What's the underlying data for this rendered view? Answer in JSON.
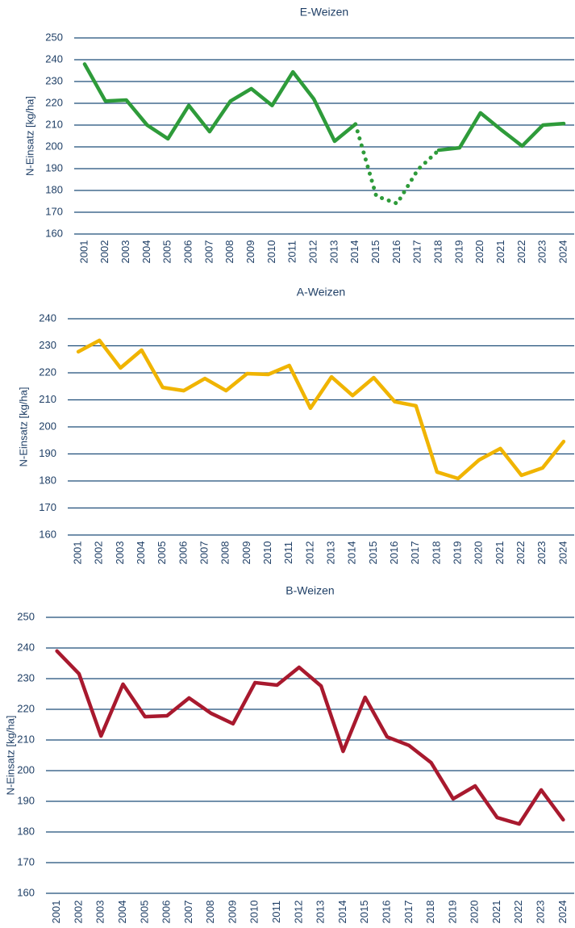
{
  "chart_data": [
    {
      "type": "line",
      "title": "E-Weizen",
      "y_label": "N-Einsatz [kg/ha]",
      "categories": [
        "2001",
        "2002",
        "2003",
        "2004",
        "2005",
        "2006",
        "2007",
        "2008",
        "2009",
        "2010",
        "2011",
        "2012",
        "2013",
        "2014",
        "2015",
        "2016",
        "2017",
        "2018",
        "2019",
        "2020",
        "2021",
        "2022",
        "2023",
        "2024"
      ],
      "series": [
        {
          "color": "#2e9b3a",
          "style": "solid",
          "values": [
            238,
            221,
            221.5,
            210,
            203.7,
            219,
            207,
            221,
            226.7,
            219,
            234.4,
            222,
            202.6,
            210.4,
            null,
            null,
            null,
            198.5,
            199.6,
            215.6,
            207.8,
            200.4,
            210,
            210.7
          ]
        },
        {
          "color": "#2e9b3a",
          "style": "dotted",
          "values": [
            null,
            null,
            null,
            null,
            null,
            null,
            null,
            null,
            null,
            null,
            null,
            null,
            null,
            210.4,
            177.4,
            174,
            189.6,
            198.5,
            null,
            null,
            null,
            null,
            null,
            null
          ]
        }
      ],
      "ylim": [
        160,
        250
      ],
      "yticks": [
        160,
        170,
        180,
        190,
        200,
        210,
        220,
        230,
        240,
        250
      ],
      "grid": true
    },
    {
      "type": "line",
      "title": "A-Weizen",
      "y_label": "N-Einsatz [kg/ha]",
      "categories": [
        "2001",
        "2002",
        "2003",
        "2004",
        "2005",
        "2006",
        "2007",
        "2008",
        "2009",
        "2010",
        "2011",
        "2012",
        "2013",
        "2014",
        "2015",
        "2016",
        "2017",
        "2018",
        "2019",
        "2020",
        "2021",
        "2022",
        "2023",
        "2024"
      ],
      "series": [
        {
          "color": "#f0b400",
          "style": "solid",
          "values": [
            227.8,
            232,
            221.8,
            228.4,
            214.6,
            213.4,
            217.9,
            213.4,
            219.7,
            219.4,
            222.7,
            206.9,
            218.5,
            211.6,
            218.2,
            209.3,
            207.8,
            183.3,
            180.9,
            187.8,
            192,
            182.1,
            184.8,
            194.6
          ]
        }
      ],
      "ylim": [
        160,
        240
      ],
      "yticks": [
        160,
        170,
        180,
        190,
        200,
        210,
        220,
        230,
        240
      ],
      "grid": true
    },
    {
      "type": "line",
      "title": "B-Weizen",
      "y_label": "N-Einsatz [kg/ha]",
      "categories": [
        "2001",
        "2002",
        "2003",
        "2004",
        "2005",
        "2006",
        "2007",
        "2008",
        "2009",
        "2010",
        "2011",
        "2012",
        "2013",
        "2014",
        "2015",
        "2016",
        "2017",
        "2018",
        "2019",
        "2020",
        "2021",
        "2022",
        "2023",
        "2024"
      ],
      "series": [
        {
          "color": "#a8192e",
          "style": "solid",
          "values": [
            239,
            231.6,
            211.3,
            228.2,
            217.6,
            217.9,
            223.7,
            218.7,
            215.3,
            228.7,
            227.9,
            233.7,
            227.6,
            206.3,
            223.9,
            211,
            208.2,
            202.6,
            190.8,
            195,
            184.7,
            182.6,
            193.7,
            184
          ]
        }
      ],
      "ylim": [
        160,
        250
      ],
      "yticks": [
        160,
        170,
        180,
        190,
        200,
        210,
        220,
        230,
        240,
        250
      ],
      "grid": true
    }
  ]
}
